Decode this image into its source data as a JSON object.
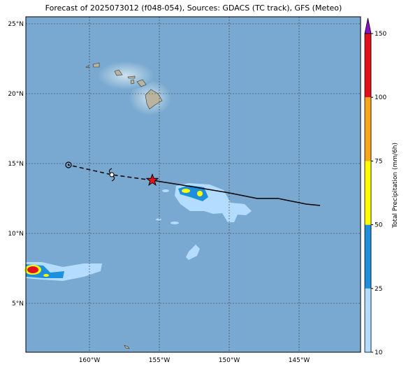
{
  "chart_data": {
    "type": "map",
    "title": "Forecast of 2025073012 (f048-054), Sources: GDACS (TC track), GFS (Meteo)",
    "xlim": [
      -164.55,
      -140.6
    ],
    "ylim": [
      1.5,
      25.5
    ],
    "xticks": [
      {
        "value": -160,
        "label": "160°W"
      },
      {
        "value": -155,
        "label": "155°W"
      },
      {
        "value": -150,
        "label": "150°W"
      },
      {
        "value": -145,
        "label": "145°W"
      }
    ],
    "yticks": [
      {
        "value": 5,
        "label": "5°N"
      },
      {
        "value": 10,
        "label": "10°N"
      },
      {
        "value": 15,
        "label": "15°N"
      },
      {
        "value": 20,
        "label": "20°N"
      },
      {
        "value": 25,
        "label": "25°N"
      }
    ],
    "grid": true,
    "track": {
      "past": {
        "color": "#000000",
        "lon": [
          -155.5,
          -153.0,
          -150.0,
          -148.0,
          -146.5,
          -144.5,
          -143.5
        ],
        "lat": [
          13.8,
          13.4,
          12.9,
          12.5,
          12.5,
          12.1,
          12.0
        ]
      },
      "forecast": {
        "color": "#000000",
        "lon": [
          -155.5,
          -158.4,
          -161.5
        ],
        "lat": [
          13.8,
          14.2,
          14.9
        ]
      },
      "current": {
        "lon": -155.5,
        "lat": 13.8,
        "color": "#e8101a"
      }
    },
    "colorbar": {
      "label": "Total Precipitation (mm/6h)",
      "levels": [
        10,
        25,
        50,
        75,
        100,
        150
      ],
      "colors": [
        "#b4dcff",
        "#1e8fdc",
        "#ffff00",
        "#f8a51e",
        "#e2101a"
      ],
      "extend_color": "#8c10c8"
    }
  }
}
